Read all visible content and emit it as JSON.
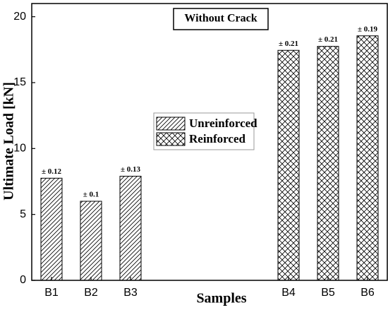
{
  "chart_data": {
    "type": "bar",
    "annotation": "Without Crack",
    "x_label": "Samples",
    "y_label": "Ultimate Load [kN]",
    "categories": [
      "B1",
      "B2",
      "B3",
      null,
      null,
      null,
      "B4",
      "B5",
      "B6"
    ],
    "series": [
      {
        "name": "Unreinforced",
        "color": "#000000",
        "hatch": "diagonal",
        "values": [
          7.75,
          6.0,
          7.9,
          null,
          null,
          null,
          null,
          null,
          null
        ],
        "error_labels": [
          "± 0.12",
          "± 0.1",
          "± 0.13",
          null,
          null,
          null,
          null,
          null,
          null
        ]
      },
      {
        "name": "Reinforced",
        "color": "#000000",
        "hatch": "cross",
        "values": [
          null,
          null,
          null,
          null,
          null,
          null,
          17.45,
          17.75,
          18.55
        ],
        "error_labels": [
          null,
          null,
          null,
          null,
          null,
          null,
          "± 0.21",
          "± 0.21",
          "± 0.19"
        ]
      }
    ],
    "ylim": [
      0,
      21
    ],
    "yticks": [
      0,
      5,
      10,
      15,
      20
    ]
  }
}
